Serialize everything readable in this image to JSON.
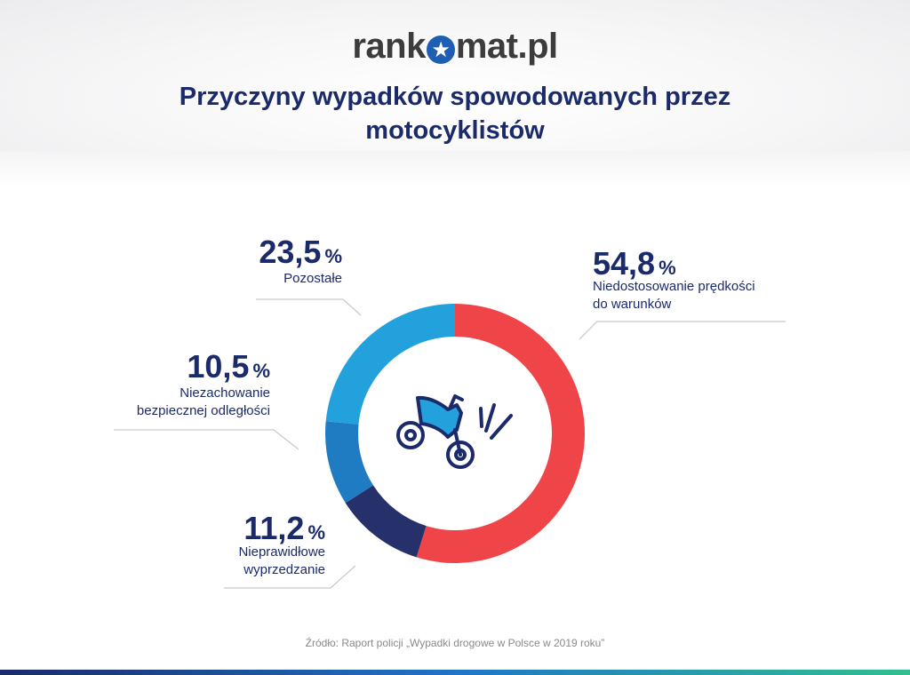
{
  "header": {
    "logo_text_left": "rank",
    "logo_star": "★",
    "logo_text_right": "mat.pl",
    "title_line1": "Przyczyny wypadków spowodowanych przez",
    "title_line2": "motocyklistów"
  },
  "chart_data": {
    "type": "pie",
    "title": "Przyczyny wypadków spowodowanych przez motocyklistów",
    "unit": "%",
    "slices": [
      {
        "label": "Niedostosowanie prędkości do warunków",
        "value": 54.8,
        "value_text": "54,8",
        "color": "#ef4549"
      },
      {
        "label": "Nieprawidłowe wyprzedzanie",
        "value": 11.2,
        "value_text": "11,2",
        "color": "#26306b"
      },
      {
        "label": "Niezachowanie bezpiecznej odległości",
        "value": 10.5,
        "value_text": "10,5",
        "color": "#1f7cc2"
      },
      {
        "label": "Pozostałe",
        "value": 23.5,
        "value_text": "23,5",
        "color": "#23a1dc"
      }
    ]
  },
  "labels": {
    "speed": {
      "pct": "54,8",
      "unit": "%",
      "line1": "Niedostosowanie prędkości",
      "line2": "do warunków"
    },
    "overtaking": {
      "pct": "11,2",
      "unit": "%",
      "line1": "Nieprawidłowe",
      "line2": "wyprzedzanie"
    },
    "distance": {
      "pct": "10,5",
      "unit": "%",
      "line1": "Niezachowanie",
      "line2": "bezpiecznej odległości"
    },
    "other": {
      "pct": "23,5",
      "unit": "%",
      "line1": "Pozostałe"
    }
  },
  "center_icon": "motorcycle-crash-icon",
  "source": "Źródło: Raport policji „Wypadki drogowe w Polsce w 2019 roku”"
}
